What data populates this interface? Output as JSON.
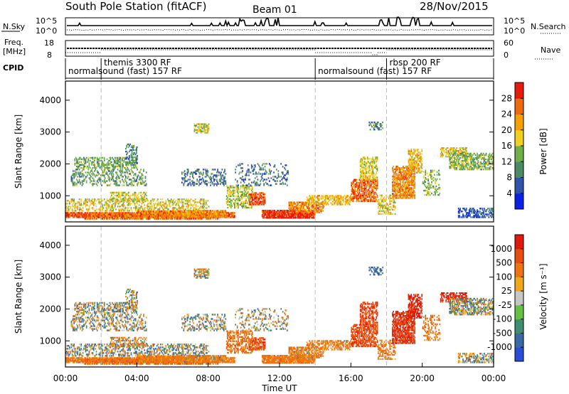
{
  "header": {
    "station": "South Pole Station (fitACF)",
    "beam": "Beam 01",
    "date": "28/Nov/2015"
  },
  "chart_data": [
    {
      "type": "line",
      "panel": "noise",
      "left_label": "N.Sky",
      "right_label": "N.Search",
      "left_ticks": [
        "10^5",
        "10^0"
      ],
      "right_ticks": [
        "10^5",
        "10^0"
      ]
    },
    {
      "type": "line",
      "panel": "frequency",
      "left_label": [
        "Freq.",
        "[MHz]"
      ],
      "right_label": "Nave",
      "left_ticks": [
        "18",
        "8"
      ],
      "right_ticks": [
        "60",
        "0"
      ]
    },
    {
      "type": "table",
      "panel": "cpid",
      "label": "CPID",
      "segments": [
        {
          "start_h": 0.0,
          "end_h": 2.0,
          "label": "normalsound (fast) 157 RF",
          "row": "lower"
        },
        {
          "start_h": 2.0,
          "end_h": 14.0,
          "label": "themis 3300 RF",
          "row": "upper"
        },
        {
          "start_h": 14.0,
          "end_h": 18.0,
          "label": "normalsound (fast) 157 RF",
          "row": "lower"
        },
        {
          "start_h": 18.0,
          "end_h": 24.0,
          "label": "rbsp 200 RF",
          "row": "upper"
        }
      ]
    },
    {
      "type": "heatmap",
      "panel": "power",
      "ylabel": "Slant Range [km]",
      "yticks": [
        1000,
        2000,
        3000,
        4000
      ],
      "ylim": [
        180,
        4600
      ],
      "xlim_hours": [
        0,
        24
      ],
      "colorbar": {
        "label": "Power [dB]",
        "ticks": [
          "4",
          "8",
          "12",
          "16",
          "20",
          "24",
          "28"
        ],
        "range": [
          0,
          32
        ],
        "colors": [
          "#0a22e8",
          "#2f54a8",
          "#4b8a62",
          "#6fae48",
          "#f0d020",
          "#f5a000",
          "#ee6a10",
          "#e81a0a"
        ]
      }
    },
    {
      "type": "heatmap",
      "panel": "velocity",
      "ylabel": "Slant Range [km]",
      "xlabel": "Time UT",
      "yticks": [
        1000,
        2000,
        3000,
        4000
      ],
      "ylim": [
        180,
        4600
      ],
      "xticks": [
        "00:00",
        "04:00",
        "08:00",
        "12:00",
        "16:00",
        "20:00",
        "00:00"
      ],
      "colorbar": {
        "label": "Velocity [m s⁻¹]",
        "ticks": [
          "1000",
          "500",
          "100",
          "25",
          "-25",
          "-100",
          "-500",
          "-1000"
        ],
        "colors": [
          "#2a4cd6",
          "#3a6aa6",
          "#3f8e70",
          "#66c046",
          "#c6c6c6",
          "#f0a818",
          "#ee7412",
          "#e84c0e",
          "#e01a0a"
        ]
      }
    }
  ]
}
